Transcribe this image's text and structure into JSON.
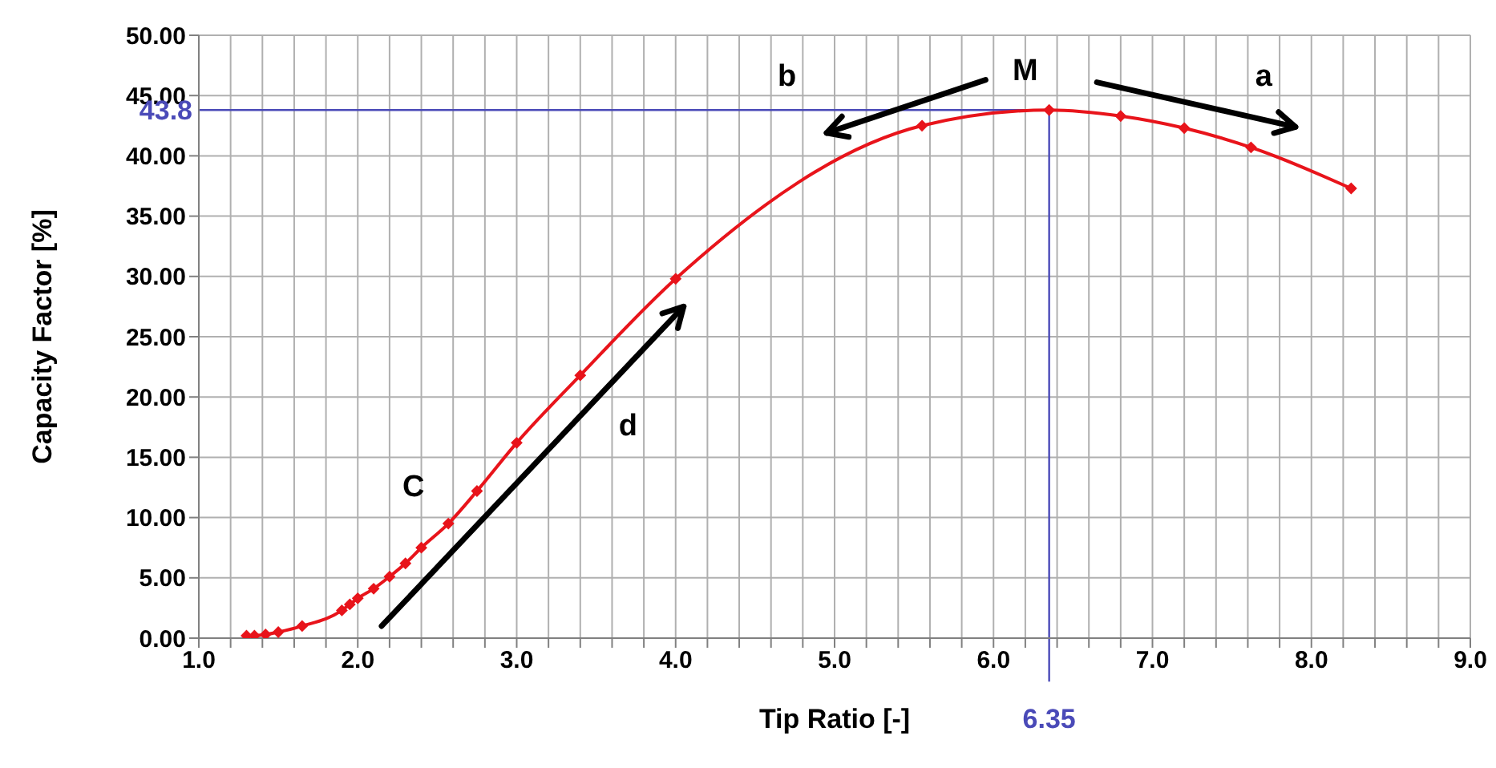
{
  "chart_data": {
    "type": "line",
    "xlabel": "Tip Ratio  [-]",
    "ylabel": "Capacity Factor [%]",
    "x": [
      1.3,
      1.35,
      1.42,
      1.5,
      1.65,
      1.9,
      1.95,
      2.0,
      2.1,
      2.2,
      2.3,
      2.4,
      2.57,
      2.75,
      3.0,
      3.4,
      4.0,
      5.55,
      6.35,
      6.8,
      7.2,
      7.62,
      8.25
    ],
    "series": [
      {
        "color": "#e8141b",
        "values": [
          0.2,
          0.2,
          0.3,
          0.5,
          1.0,
          2.3,
          2.8,
          3.3,
          4.1,
          5.1,
          6.2,
          7.5,
          9.5,
          12.2,
          16.2,
          21.8,
          29.8,
          42.5,
          43.8,
          43.3,
          42.3,
          40.7,
          37.3
        ]
      }
    ],
    "xlim": [
      1,
      9
    ],
    "xticks": [
      {
        "value": 1,
        "label": "1.0"
      },
      {
        "value": 1.2,
        "label": null
      },
      {
        "value": 1.4,
        "label": null
      },
      {
        "value": 1.6,
        "label": null
      },
      {
        "value": 1.8,
        "label": null
      },
      {
        "value": 2,
        "label": "2.0"
      },
      {
        "value": 2.2,
        "label": null
      },
      {
        "value": 2.4,
        "label": null
      },
      {
        "value": 2.6,
        "label": null
      },
      {
        "value": 2.8,
        "label": null
      },
      {
        "value": 3,
        "label": "3.0"
      },
      {
        "value": 3.2,
        "label": null
      },
      {
        "value": 3.4,
        "label": null
      },
      {
        "value": 3.6,
        "label": null
      },
      {
        "value": 3.8,
        "label": null
      },
      {
        "value": 4,
        "label": "4.0"
      },
      {
        "value": 4.2,
        "label": null
      },
      {
        "value": 4.4,
        "label": null
      },
      {
        "value": 4.6,
        "label": null
      },
      {
        "value": 4.8,
        "label": null
      },
      {
        "value": 5,
        "label": "5.0"
      },
      {
        "value": 5.2,
        "label": null
      },
      {
        "value": 5.4,
        "label": null
      },
      {
        "value": 5.6,
        "label": null
      },
      {
        "value": 5.8,
        "label": null
      },
      {
        "value": 6,
        "label": "6.0"
      },
      {
        "value": 6.2,
        "label": null
      },
      {
        "value": 6.4,
        "label": null
      },
      {
        "value": 6.6,
        "label": null
      },
      {
        "value": 6.8,
        "label": null
      },
      {
        "value": 7,
        "label": "7.0"
      },
      {
        "value": 7.2,
        "label": null
      },
      {
        "value": 7.4,
        "label": null
      },
      {
        "value": 7.6,
        "label": null
      },
      {
        "value": 7.8,
        "label": null
      },
      {
        "value": 8,
        "label": "8.0"
      },
      {
        "value": 8.2,
        "label": null
      },
      {
        "value": 8.4,
        "label": null
      },
      {
        "value": 8.6,
        "label": null
      },
      {
        "value": 8.8,
        "label": null
      },
      {
        "value": 9,
        "label": "9.0"
      }
    ],
    "ylim": [
      0,
      50
    ],
    "yticks": [
      {
        "value": 0,
        "label": "0.00"
      },
      {
        "value": 5,
        "label": "5.00"
      },
      {
        "value": 10,
        "label": "10.00"
      },
      {
        "value": 15,
        "label": "15.00"
      },
      {
        "value": 20,
        "label": "20.00"
      },
      {
        "value": 25,
        "label": "25.00"
      },
      {
        "value": 30,
        "label": "30.00"
      },
      {
        "value": 35,
        "label": "35.00"
      },
      {
        "value": 40,
        "label": "40.00"
      },
      {
        "value": 45,
        "label": "45.00"
      },
      {
        "value": 50,
        "label": "50.00"
      }
    ],
    "grid": true,
    "marker": "diamond",
    "line_style": "solid",
    "ref_lines": [
      {
        "axis": "x",
        "value": 6.35,
        "label": "6.35",
        "color": "#4a4ab8"
      },
      {
        "axis": "y",
        "value": 43.8,
        "label": "43.8",
        "color": "#4a4ab8"
      }
    ],
    "annotations": [
      "M",
      "b",
      "a",
      "C",
      "d"
    ]
  }
}
